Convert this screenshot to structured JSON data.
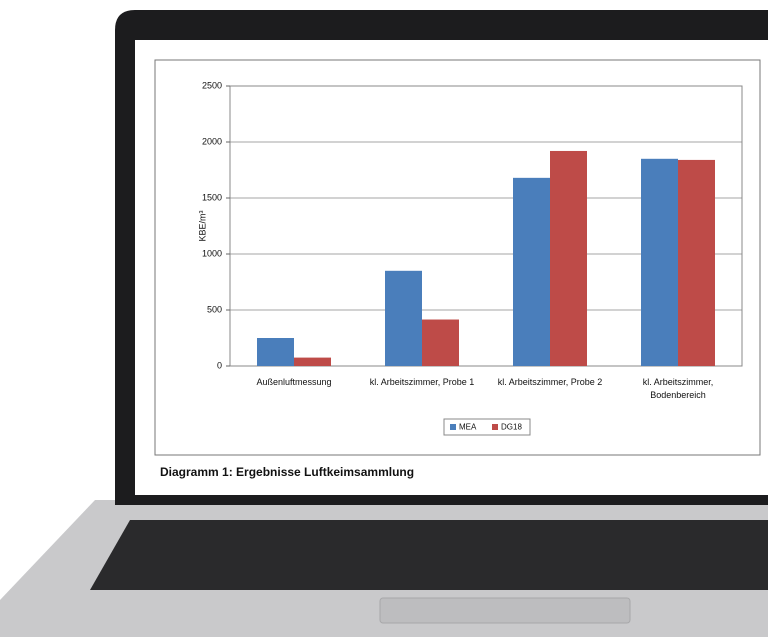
{
  "chart_data": {
    "type": "bar",
    "caption": "Diagramm 1: Ergebnisse Luftkeimsammlung",
    "y_label": "KBE/m³",
    "categories": [
      "Außenluftmessung",
      "kl. Arbeitszimmer, Probe 1",
      "kl. Arbeitszimmer, Probe 2",
      "kl. Arbeitszimmer, Bodenbereich"
    ],
    "series": [
      {
        "name": "MEA",
        "color": "#4a7ebb",
        "values": [
          250,
          850,
          1680,
          1850
        ]
      },
      {
        "name": "DG18",
        "color": "#be4b48",
        "values": [
          75,
          415,
          1920,
          1840
        ]
      }
    ],
    "ylim": [
      0,
      2500
    ],
    "yticks": [
      0,
      500,
      1000,
      1500,
      2000,
      2500
    ],
    "grid": true,
    "legend": "bottom"
  }
}
